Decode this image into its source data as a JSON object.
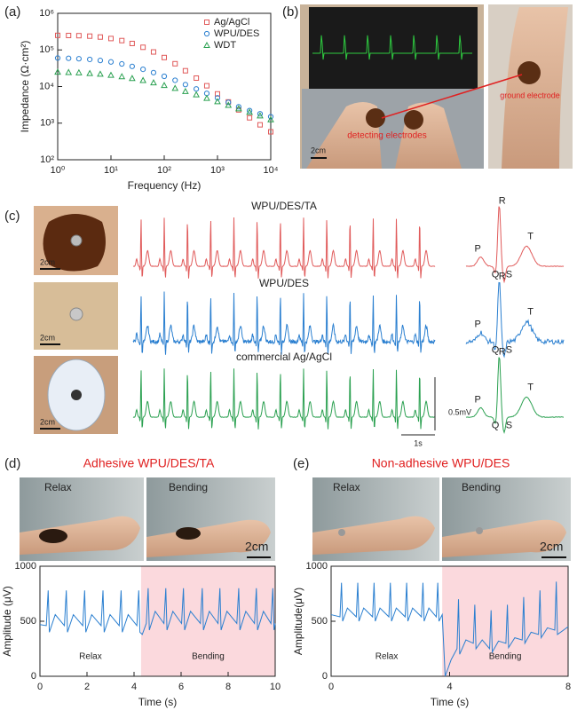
{
  "panel_labels": [
    "(a)",
    "(b)",
    "(c)",
    "(d)",
    "(e)"
  ],
  "chart_data": [
    {
      "type": "scatter",
      "xscale": "log",
      "yscale": "log",
      "xlabel": "Frequency (Hz)",
      "ylabel": "Impedance (Ω·cm²)",
      "x": [
        1,
        1.6,
        2.5,
        4,
        6.3,
        10,
        16,
        25,
        40,
        63,
        100,
        160,
        250,
        400,
        630,
        1000,
        1600,
        2500,
        4000,
        6300,
        10000
      ],
      "series": [
        {
          "name": "Ag/AgCl",
          "color": "#e05a5a",
          "marker": "square",
          "values": [
            250000,
            248000,
            245000,
            238000,
            225000,
            205000,
            180000,
            150000,
            118000,
            88000,
            62000,
            42000,
            27000,
            17000,
            10500,
            6300,
            3800,
            2300,
            1400,
            900,
            580
          ]
        },
        {
          "name": "WPU/DES",
          "color": "#2a7fd0",
          "marker": "circle",
          "values": [
            60000,
            59000,
            57500,
            55000,
            51500,
            47000,
            41500,
            35500,
            29500,
            24000,
            19000,
            14800,
            11300,
            8600,
            6500,
            4900,
            3700,
            2800,
            2200,
            1800,
            1500
          ]
        },
        {
          "name": "WDT",
          "color": "#2aa050",
          "marker": "triangle",
          "values": [
            25000,
            24500,
            24000,
            23000,
            22000,
            20500,
            18800,
            16800,
            14800,
            12800,
            10800,
            9000,
            7400,
            6000,
            4800,
            3900,
            3100,
            2500,
            2000,
            1600,
            1250
          ]
        }
      ],
      "xlim": [
        1,
        10000
      ],
      "ylim": [
        100,
        1000000
      ],
      "xticks": [
        {
          "value": 1,
          "label": "10⁰"
        },
        {
          "value": 10,
          "label": "10¹"
        },
        {
          "value": 100,
          "label": "10²"
        },
        {
          "value": 1000,
          "label": "10³"
        },
        {
          "value": 10000,
          "label": "10⁴"
        }
      ],
      "yticks": [
        {
          "value": 100,
          "label": "10²"
        },
        {
          "value": 1000,
          "label": "10³"
        },
        {
          "value": 10000,
          "label": "10⁴"
        },
        {
          "value": 100000,
          "label": "10⁵"
        },
        {
          "value": 1000000,
          "label": "10⁶"
        }
      ],
      "legend": "upper right"
    },
    {
      "type": "line",
      "title": "Adhesive WPU/DES/TA",
      "xlabel": "Time (s)",
      "ylabel": "Amplitude (μV)",
      "x": [
        0,
        0.27,
        0.35,
        0.4,
        0.65,
        1.04,
        1.12,
        1.17,
        1.42,
        1.82,
        1.9,
        1.95,
        2.2,
        2.6,
        2.68,
        2.73,
        2.98,
        3.37,
        3.45,
        3.5,
        3.75,
        4.12,
        4.2,
        4.25,
        4.35,
        4.52,
        4.6,
        4.65,
        4.9,
        5.27,
        5.35,
        5.4,
        5.65,
        6.02,
        6.1,
        6.15,
        6.4,
        6.82,
        6.9,
        6.95,
        7.2,
        7.57,
        7.65,
        7.7,
        7.95,
        8.37,
        8.45,
        8.5,
        8.75,
        9.12,
        9.2,
        9.25,
        9.5,
        9.82,
        9.9,
        9.95,
        10
      ],
      "series": [
        {
          "name": "ECG",
          "color": "#2a7fd0",
          "values": [
            470,
            460,
            780,
            400,
            560,
            460,
            780,
            400,
            560,
            460,
            780,
            400,
            560,
            460,
            780,
            400,
            560,
            460,
            780,
            400,
            560,
            460,
            780,
            400,
            380,
            480,
            800,
            420,
            590,
            480,
            800,
            420,
            590,
            480,
            800,
            420,
            590,
            480,
            800,
            420,
            590,
            480,
            800,
            420,
            590,
            480,
            800,
            420,
            590,
            480,
            800,
            420,
            590,
            480,
            800,
            420,
            480
          ]
        }
      ],
      "xlim": [
        0,
        10
      ],
      "ylim": [
        0,
        1000
      ],
      "xticks": [
        0,
        2,
        4,
        6,
        8,
        10
      ],
      "yticks": [
        0,
        500,
        1000
      ],
      "shade_x": [
        4.3,
        10
      ],
      "shade_color": "#fbd9dd",
      "region_labels": [
        "Relax",
        "Bending"
      ],
      "photos": {
        "left": "Relax",
        "right": "Bending",
        "scale": "2cm"
      }
    },
    {
      "type": "line",
      "title": "Non-adhesive WPU/DES",
      "xlabel": "Time (s)",
      "ylabel": "Amplitude(μV)",
      "x": [
        0,
        0.3,
        0.35,
        0.39,
        0.55,
        0.85,
        0.9,
        0.94,
        1.1,
        1.4,
        1.45,
        1.49,
        1.65,
        1.95,
        2.0,
        2.04,
        2.2,
        2.5,
        2.55,
        2.59,
        2.75,
        3.05,
        3.1,
        3.14,
        3.3,
        3.55,
        3.6,
        3.64,
        3.75,
        3.85,
        4.05,
        4.25,
        4.3,
        4.34,
        4.55,
        4.8,
        4.85,
        4.89,
        5.1,
        5.35,
        5.4,
        5.44,
        5.65,
        5.9,
        5.95,
        5.99,
        6.2,
        6.45,
        6.5,
        6.54,
        6.75,
        7.0,
        7.05,
        7.09,
        7.3,
        7.55,
        7.6,
        7.64,
        8
      ],
      "series": [
        {
          "name": "ECG",
          "color": "#2a7fd0",
          "values": [
            560,
            540,
            850,
            500,
            620,
            540,
            850,
            500,
            620,
            540,
            850,
            500,
            620,
            540,
            850,
            500,
            620,
            540,
            850,
            500,
            620,
            540,
            850,
            500,
            620,
            540,
            850,
            500,
            560,
            0,
            150,
            250,
            700,
            200,
            330,
            300,
            650,
            250,
            330,
            250,
            600,
            220,
            320,
            300,
            650,
            260,
            350,
            330,
            720,
            300,
            400,
            380,
            780,
            350,
            440,
            420,
            860,
            380,
            450
          ]
        }
      ],
      "xlim": [
        0,
        8
      ],
      "ylim": [
        0,
        1000
      ],
      "xticks": [
        0,
        4,
        8
      ],
      "yticks": [
        0,
        500,
        1000
      ],
      "shade_x": [
        3.75,
        8
      ],
      "shade_color": "#fbd9dd",
      "region_labels": [
        "Relax",
        "Bending"
      ],
      "photos": {
        "left": "Relax",
        "right": "Bending",
        "scale": "2cm"
      }
    }
  ],
  "panel_b": {
    "detecting": "detecting electrodes",
    "ground": "ground electrode",
    "scale": "2cm"
  },
  "panel_c": {
    "rows": [
      {
        "title": "WPU/DES/TA",
        "color": "#e05a5a",
        "scale": "2cm",
        "wave_labels": [
          "P",
          "Q",
          "R",
          "S",
          "T"
        ]
      },
      {
        "title": "WPU/DES",
        "color": "#2a7fd0",
        "scale": "2cm",
        "wave_labels": [
          "P",
          "Q",
          "R",
          "S",
          "T"
        ]
      },
      {
        "title": "commercial Ag/AgCl",
        "color": "#2aa050",
        "scale": "2cm",
        "wave_labels": [
          "P",
          "Q",
          "R",
          "S",
          "T"
        ]
      }
    ],
    "vbar": "0.5mV",
    "hbar": "1s"
  }
}
